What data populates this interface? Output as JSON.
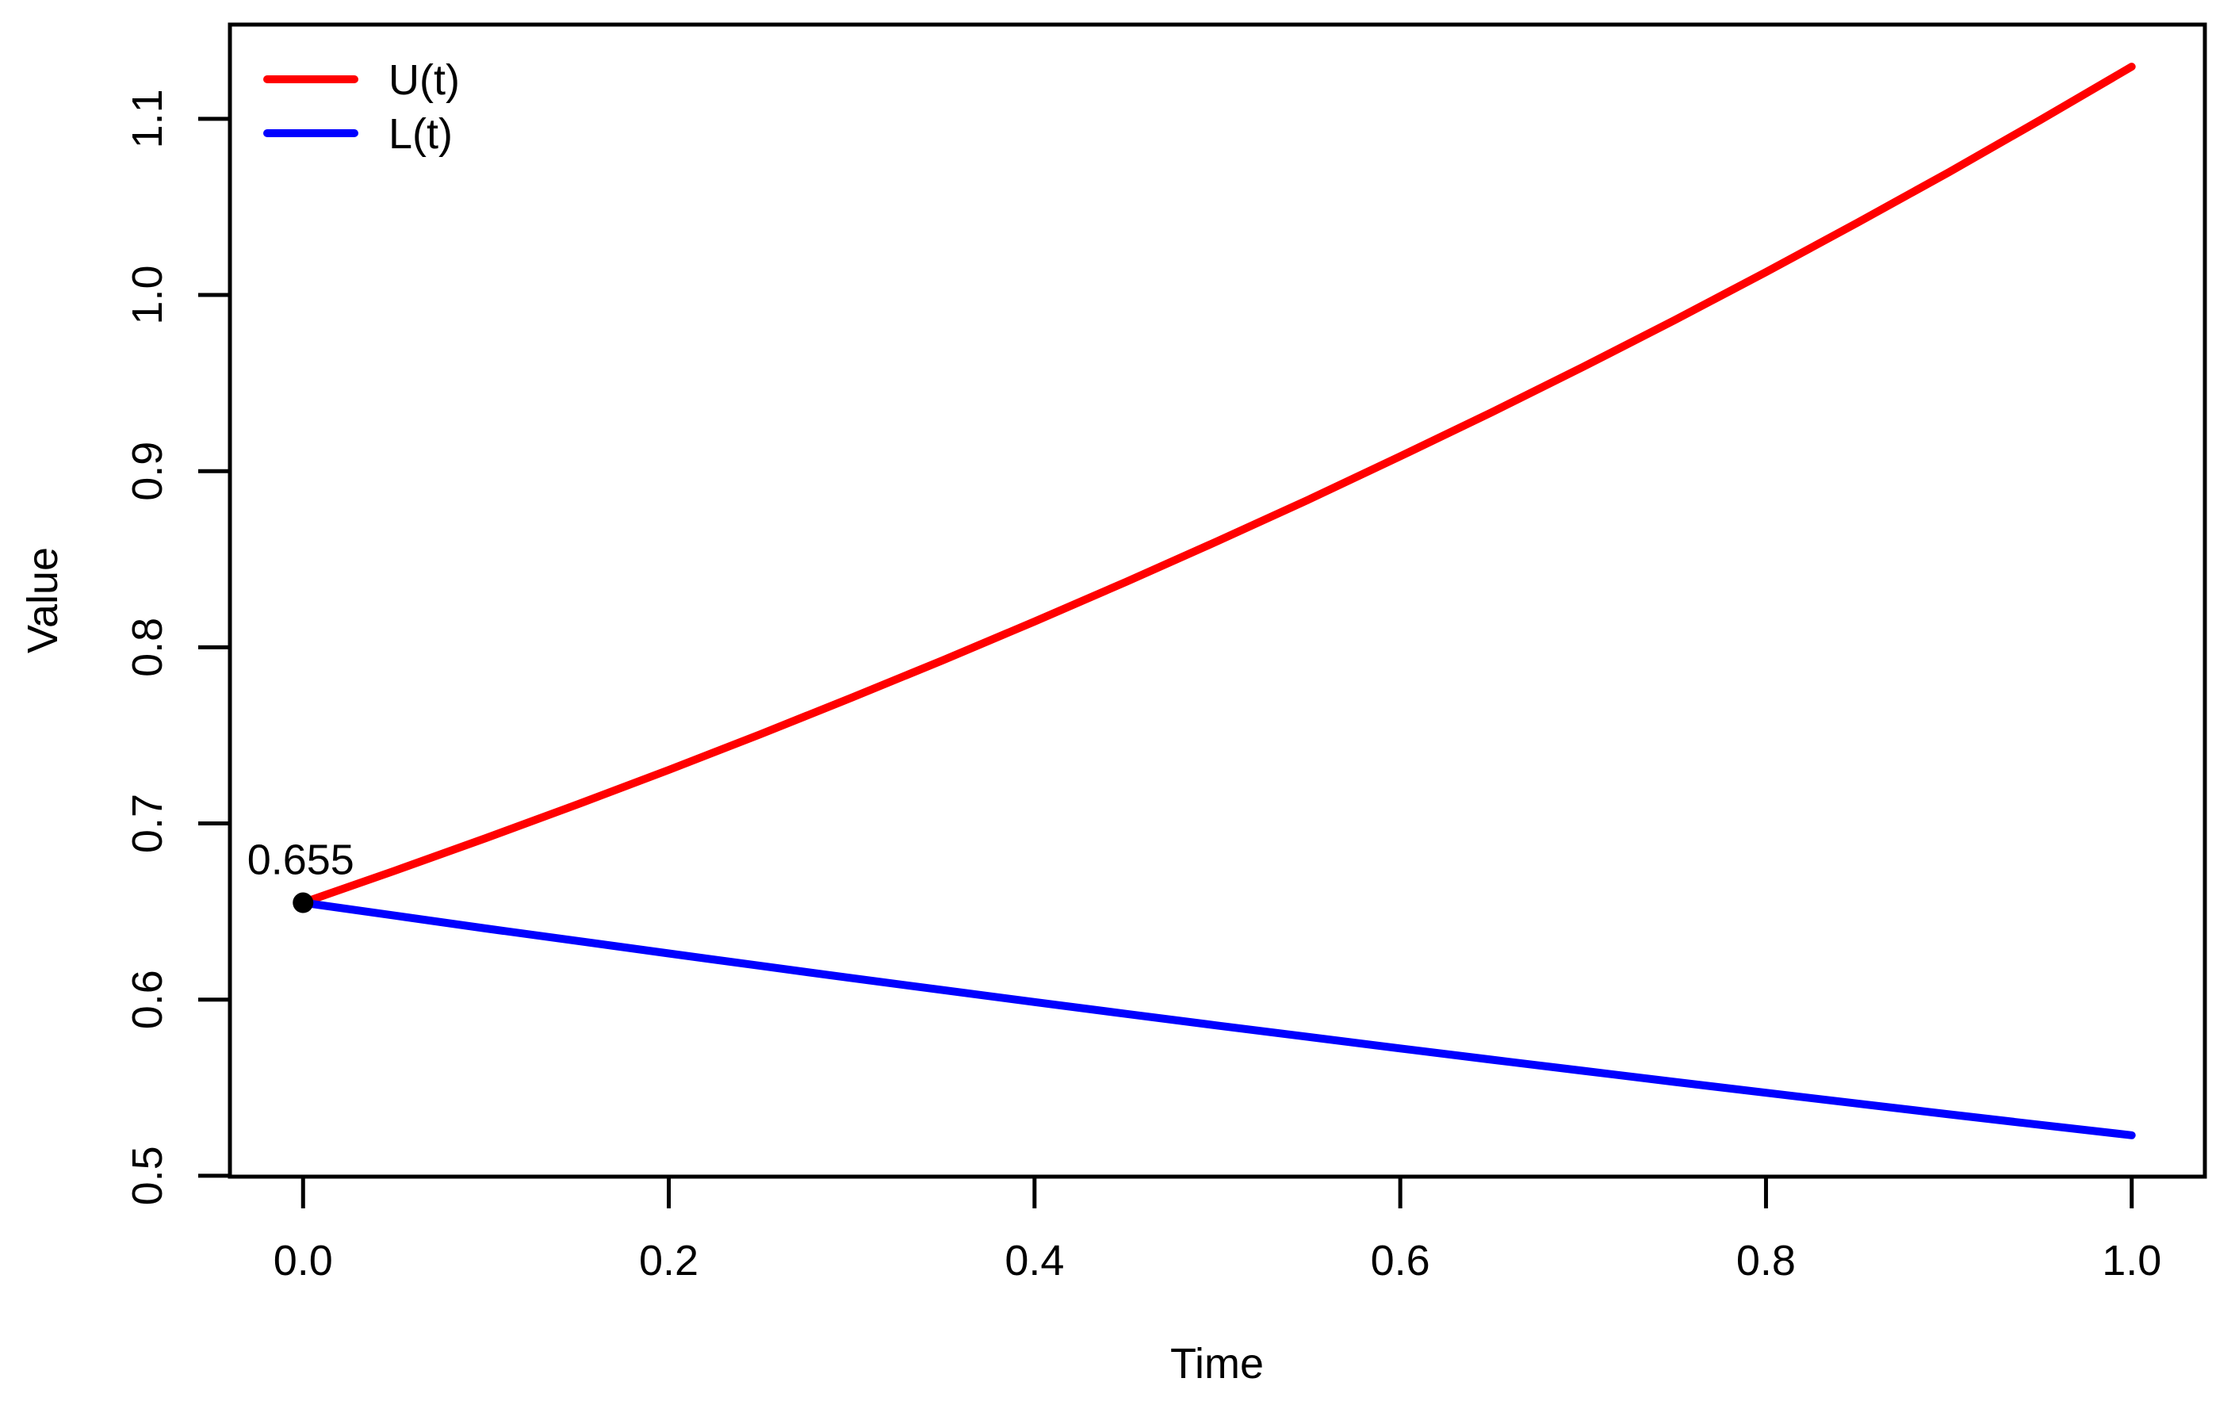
{
  "figure": {
    "background": "#ffffff",
    "axis_color": "#000000"
  },
  "chart_data": {
    "type": "line",
    "title": "",
    "xlabel": "Time",
    "ylabel": "Value",
    "grid": false,
    "background": "#ffffff",
    "axis_color": "#000000",
    "xlim": [
      -0.04,
      1.04
    ],
    "ylim": [
      0.4995,
      1.1535
    ],
    "x_ticks": {
      "values": [
        0.0,
        0.2,
        0.4,
        0.6,
        0.8,
        1.0
      ],
      "labels": [
        "0.0",
        "0.2",
        "0.4",
        "0.6",
        "0.8",
        "1.0"
      ]
    },
    "y_ticks": {
      "values": [
        0.5,
        0.6,
        0.7,
        0.8,
        0.9,
        1.0,
        1.1
      ],
      "labels": [
        "0.5",
        "0.6",
        "0.7",
        "0.8",
        "0.9",
        "1.0",
        "1.1"
      ]
    },
    "x": [
      0,
      0.05,
      0.1,
      0.15,
      0.2,
      0.25,
      0.3,
      0.35,
      0.4,
      0.45,
      0.5,
      0.55,
      0.6,
      0.65,
      0.7,
      0.75,
      0.8,
      0.85,
      0.9,
      0.95,
      1.0
    ],
    "series": [
      {
        "name": "U(t)",
        "color": "#ff0000",
        "values": [
          0.655,
          0.6731,
          0.6917,
          0.7108,
          0.7304,
          0.7506,
          0.7714,
          0.7927,
          0.8146,
          0.8371,
          0.8602,
          0.8839,
          0.9084,
          0.9334,
          0.9592,
          0.9857,
          1.013,
          1.041,
          1.0697,
          1.0993,
          1.1296
        ]
      },
      {
        "name": "L(t)",
        "color": "#0000ff",
        "values": [
          0.655,
          0.6477,
          0.6404,
          0.6333,
          0.6262,
          0.6192,
          0.6122,
          0.6054,
          0.5986,
          0.5919,
          0.5853,
          0.5788,
          0.5723,
          0.5659,
          0.5596,
          0.5533,
          0.5471,
          0.541,
          0.5349,
          0.5289,
          0.523
        ]
      }
    ],
    "annotation": {
      "text": "0.655",
      "x": 0,
      "y": 0.655,
      "point_color": "#000000"
    },
    "legend_position": "top-left"
  }
}
